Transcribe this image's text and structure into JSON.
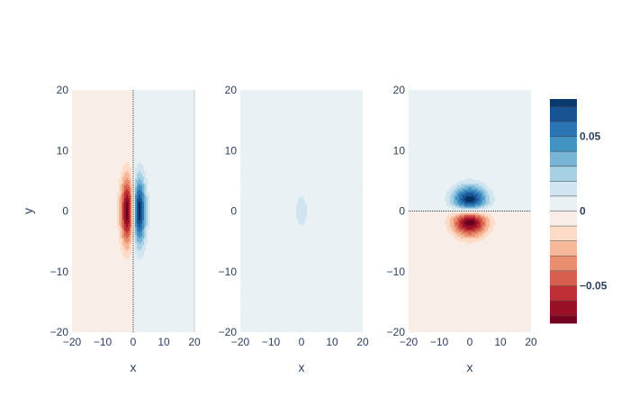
{
  "chart_data": {
    "type": "heatmap",
    "subtype": "filled-contour",
    "colorscale_name": "RdBu",
    "colorscale": [
      "#67001f",
      "#b2182b",
      "#d6604d",
      "#f4a582",
      "#fddbc7",
      "#f7f7f7",
      "#d1e5f0",
      "#92c5de",
      "#4393c3",
      "#2166ac",
      "#053061"
    ],
    "contour_line_color": "#444444",
    "zrange": [
      -0.075,
      0.075
    ],
    "contour_step": 0.01,
    "colorbar": {
      "tickvals": [
        0.05,
        0,
        -0.05
      ],
      "ticktext": [
        "0.05",
        "0",
        "−0.05"
      ]
    },
    "panels": [
      {
        "xlabel": "x",
        "ylabel": "y",
        "xlim": [
          -20,
          20
        ],
        "ylim": [
          -20,
          20
        ],
        "xticks": [
          -20,
          -10,
          0,
          10,
          20
        ],
        "xticklabels": [
          "−20",
          "−10",
          "0",
          "10",
          "20"
        ],
        "yticks": [
          20,
          10,
          0,
          -10,
          -20
        ],
        "yticklabels": [
          "20",
          "10",
          "0",
          "−10",
          "−20"
        ],
        "field": "dipole-x",
        "peak": 0.075,
        "peak_location": [
          2,
          0
        ]
      },
      {
        "xlabel": "x",
        "ylabel": "",
        "xlim": [
          -20,
          20
        ],
        "ylim": [
          -20,
          20
        ],
        "xticks": [
          -20,
          -10,
          0,
          10,
          20
        ],
        "xticklabels": [
          "−20",
          "−10",
          "0",
          "10",
          "20"
        ],
        "yticks": [
          20,
          10,
          0,
          -10,
          -20
        ],
        "yticklabels": [
          "20",
          "10",
          "0",
          "−10",
          "−20"
        ],
        "field": "gaussian",
        "peak": 0.012,
        "peak_location": [
          0,
          0
        ]
      },
      {
        "xlabel": "x",
        "ylabel": "",
        "xlim": [
          -20,
          20
        ],
        "ylim": [
          -20,
          20
        ],
        "xticks": [
          -20,
          -10,
          0,
          10,
          20
        ],
        "xticklabels": [
          "−20",
          "−10",
          "0",
          "10",
          "20"
        ],
        "yticks": [
          20,
          10,
          0,
          -10,
          -20
        ],
        "yticklabels": [
          "20",
          "10",
          "0",
          "−10",
          "−20"
        ],
        "field": "dipole-y",
        "peak": 0.075,
        "peak_location": [
          0,
          2
        ]
      }
    ]
  }
}
